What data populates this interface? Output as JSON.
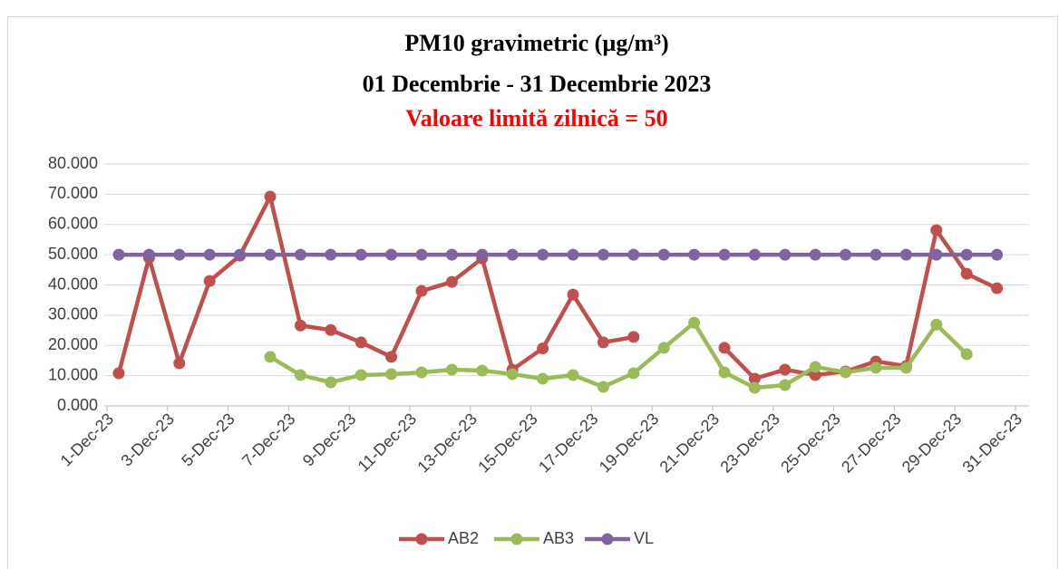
{
  "chart_data": {
    "type": "line",
    "title": "PM10 gravimetric (µg/m³)",
    "subtitle": "01 Decembrie - 31 Decembrie 2023",
    "annotation": "Valoare limită zilnică  = 50",
    "x": [
      "2023-12-01",
      "2023-12-02",
      "2023-12-03",
      "2023-12-04",
      "2023-12-05",
      "2023-12-06",
      "2023-12-07",
      "2023-12-08",
      "2023-12-09",
      "2023-12-10",
      "2023-12-11",
      "2023-12-12",
      "2023-12-13",
      "2023-12-14",
      "2023-12-15",
      "2023-12-16",
      "2023-12-17",
      "2023-12-18",
      "2023-12-19",
      "2023-12-20",
      "2023-12-21",
      "2023-12-22",
      "2023-12-23",
      "2023-12-24",
      "2023-12-25",
      "2023-12-26",
      "2023-12-27",
      "2023-12-28",
      "2023-12-29",
      "2023-12-30"
    ],
    "series": [
      {
        "name": "AB2",
        "color": "#c0504d",
        "values": [
          10.8,
          49,
          14.1,
          41.3,
          49.7,
          69.2,
          26.6,
          25.1,
          21.0,
          16.2,
          38.0,
          41.0,
          48.8,
          12.0,
          19.0,
          36.8,
          21.0,
          22.8,
          null,
          null,
          19.2,
          9.0,
          12.0,
          10.2,
          11.4,
          14.7,
          13.2,
          58.1,
          43.7,
          38.9
        ]
      },
      {
        "name": "AB3",
        "color": "#9bbb59",
        "values": [
          null,
          null,
          null,
          null,
          null,
          16.2,
          10.2,
          7.8,
          10.2,
          10.5,
          11.1,
          12.0,
          11.7,
          10.5,
          9.0,
          10.2,
          6.3,
          10.8,
          19.2,
          27.5,
          11.1,
          6.0,
          6.9,
          12.9,
          11.1,
          12.6,
          12.6,
          26.9,
          17.1,
          null
        ]
      },
      {
        "name": "VL",
        "color": "#8064a2",
        "values": [
          50,
          50,
          50,
          50,
          50,
          50,
          50,
          50,
          50,
          50,
          50,
          50,
          50,
          50,
          50,
          50,
          50,
          50,
          50,
          50,
          50,
          50,
          50,
          50,
          50,
          50,
          50,
          50,
          50,
          50
        ]
      }
    ],
    "xlim": [
      "2023-12-01",
      "2023-12-31"
    ],
    "xticks": [
      {
        "value": "2023-12-01",
        "label": "1-Dec-23"
      },
      {
        "value": "2023-12-03",
        "label": "3-Dec-23"
      },
      {
        "value": "2023-12-05",
        "label": "5-Dec-23"
      },
      {
        "value": "2023-12-07",
        "label": "7-Dec-23"
      },
      {
        "value": "2023-12-09",
        "label": "9-Dec-23"
      },
      {
        "value": "2023-12-11",
        "label": "11-Dec-23"
      },
      {
        "value": "2023-12-13",
        "label": "13-Dec-23"
      },
      {
        "value": "2023-12-15",
        "label": "15-Dec-23"
      },
      {
        "value": "2023-12-17",
        "label": "17-Dec-23"
      },
      {
        "value": "2023-12-19",
        "label": "19-Dec-23"
      },
      {
        "value": "2023-12-21",
        "label": "21-Dec-23"
      },
      {
        "value": "2023-12-23",
        "label": "23-Dec-23"
      },
      {
        "value": "2023-12-25",
        "label": "25-Dec-23"
      },
      {
        "value": "2023-12-27",
        "label": "27-Dec-23"
      },
      {
        "value": "2023-12-29",
        "label": "29-Dec-23"
      },
      {
        "value": "2023-12-31",
        "label": "31-Dec-23"
      }
    ],
    "ylim": [
      0,
      80
    ],
    "yticks": [
      {
        "value": 0,
        "label": "0.000"
      },
      {
        "value": 10,
        "label": "10.000"
      },
      {
        "value": 20,
        "label": "20.000"
      },
      {
        "value": 30,
        "label": "30.000"
      },
      {
        "value": 40,
        "label": "40.000"
      },
      {
        "value": 50,
        "label": "50.000"
      },
      {
        "value": 60,
        "label": "60.000"
      },
      {
        "value": 70,
        "label": "70.000"
      },
      {
        "value": 80,
        "label": "80.000"
      }
    ],
    "grid": true,
    "legend": "bottom"
  }
}
